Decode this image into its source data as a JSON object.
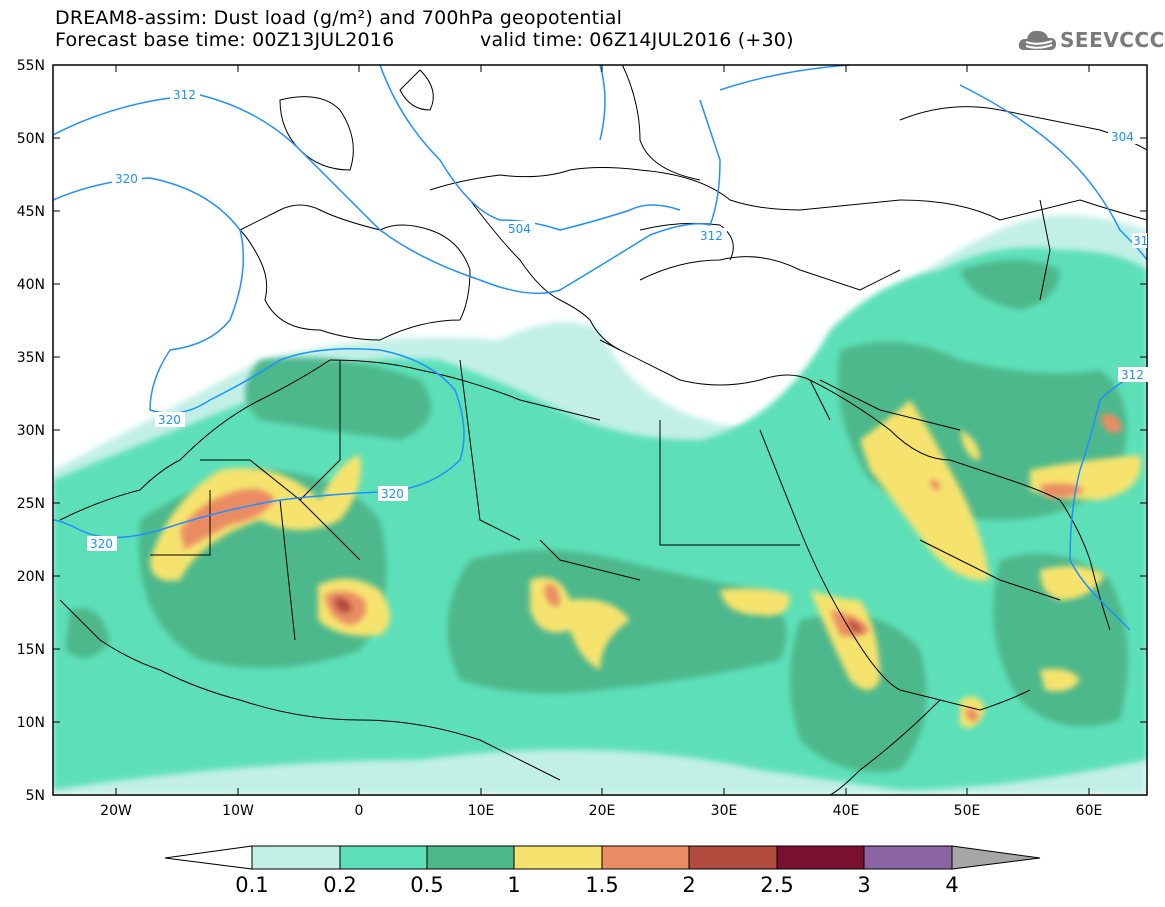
{
  "header": {
    "line1": "DREAM8-assim: Dust load (g/m²) and 700hPa geopotential",
    "base_time": "Forecast base time: 00Z13JUL2016",
    "valid_time": "valid time: 06Z14JUL2016 (+30)"
  },
  "logo": {
    "text": "SEEVCCC",
    "icon": "cloud-icon"
  },
  "map": {
    "lat_labels": [
      "55N",
      "50N",
      "45N",
      "40N",
      "35N",
      "30N",
      "25N",
      "20N",
      "15N",
      "10N",
      "5N"
    ],
    "lon_labels": [
      "20W",
      "10W",
      "0",
      "10E",
      "20E",
      "30E",
      "40E",
      "50E",
      "60E"
    ],
    "contour_labels": [
      "312",
      "320",
      "320",
      "320",
      "320",
      "504",
      "312",
      "304",
      "312",
      "31"
    ],
    "colors": {
      "land_border": "#000000",
      "contour": "#1e90ff"
    }
  },
  "colorbar": {
    "ticks": [
      "0.1",
      "0.2",
      "0.5",
      "1",
      "1.5",
      "2",
      "2.5",
      "3",
      "4"
    ],
    "colors": [
      "#c3f0e6",
      "#5de0b8",
      "#4db88c",
      "#f6e36e",
      "#ea8c64",
      "#b24c3e",
      "#7a0f2f",
      "#8b65a3",
      "#a6a6a6"
    ],
    "under_color": "#ffffff"
  }
}
